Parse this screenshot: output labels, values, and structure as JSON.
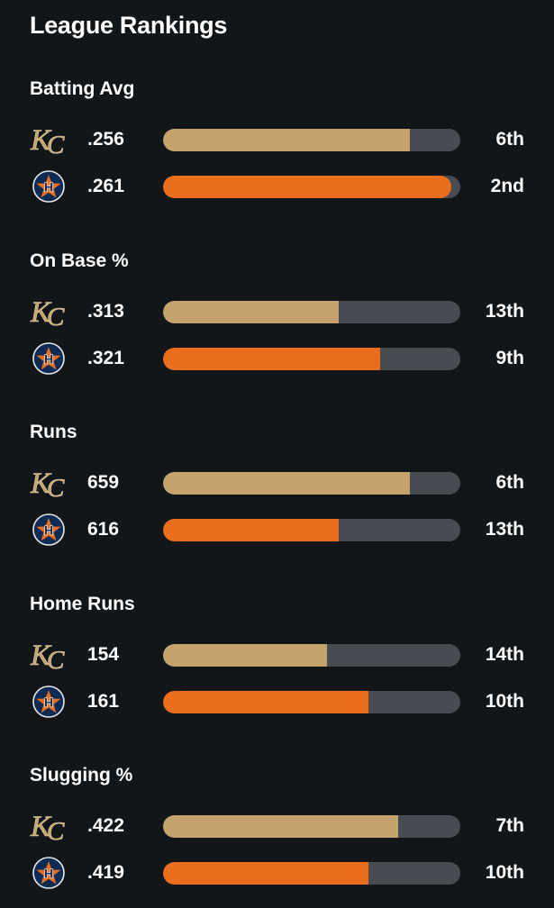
{
  "title": "League Rankings",
  "colors": {
    "background": "#121619",
    "kc_bar": "#c4a46c",
    "hou_bar": "#eb6e1f",
    "track": "#464c52",
    "hou_navy": "#0c2c56"
  },
  "teams": {
    "kc": {
      "logo_text": "KC",
      "icon": "kc-logo-icon"
    },
    "hou": {
      "logo_text": "H",
      "icon": "astros-logo-icon"
    }
  },
  "sections": [
    {
      "title": "Batting Avg",
      "rows": [
        {
          "team": "kc",
          "value": ".256",
          "rank": "6th",
          "bar_fill": 0.83
        },
        {
          "team": "hou",
          "value": ".261",
          "rank": "2nd",
          "bar_fill": 0.97
        }
      ]
    },
    {
      "title": "On Base %",
      "rows": [
        {
          "team": "kc",
          "value": ".313",
          "rank": "13th",
          "bar_fill": 0.59
        },
        {
          "team": "hou",
          "value": ".321",
          "rank": "9th",
          "bar_fill": 0.73
        }
      ]
    },
    {
      "title": "Runs",
      "rows": [
        {
          "team": "kc",
          "value": "659",
          "rank": "6th",
          "bar_fill": 0.83
        },
        {
          "team": "hou",
          "value": "616",
          "rank": "13th",
          "bar_fill": 0.59
        }
      ]
    },
    {
      "title": "Home Runs",
      "rows": [
        {
          "team": "kc",
          "value": "154",
          "rank": "14th",
          "bar_fill": 0.55
        },
        {
          "team": "hou",
          "value": "161",
          "rank": "10th",
          "bar_fill": 0.69
        }
      ]
    },
    {
      "title": "Slugging %",
      "rows": [
        {
          "team": "kc",
          "value": ".422",
          "rank": "7th",
          "bar_fill": 0.79
        },
        {
          "team": "hou",
          "value": ".419",
          "rank": "10th",
          "bar_fill": 0.69
        }
      ]
    }
  ]
}
